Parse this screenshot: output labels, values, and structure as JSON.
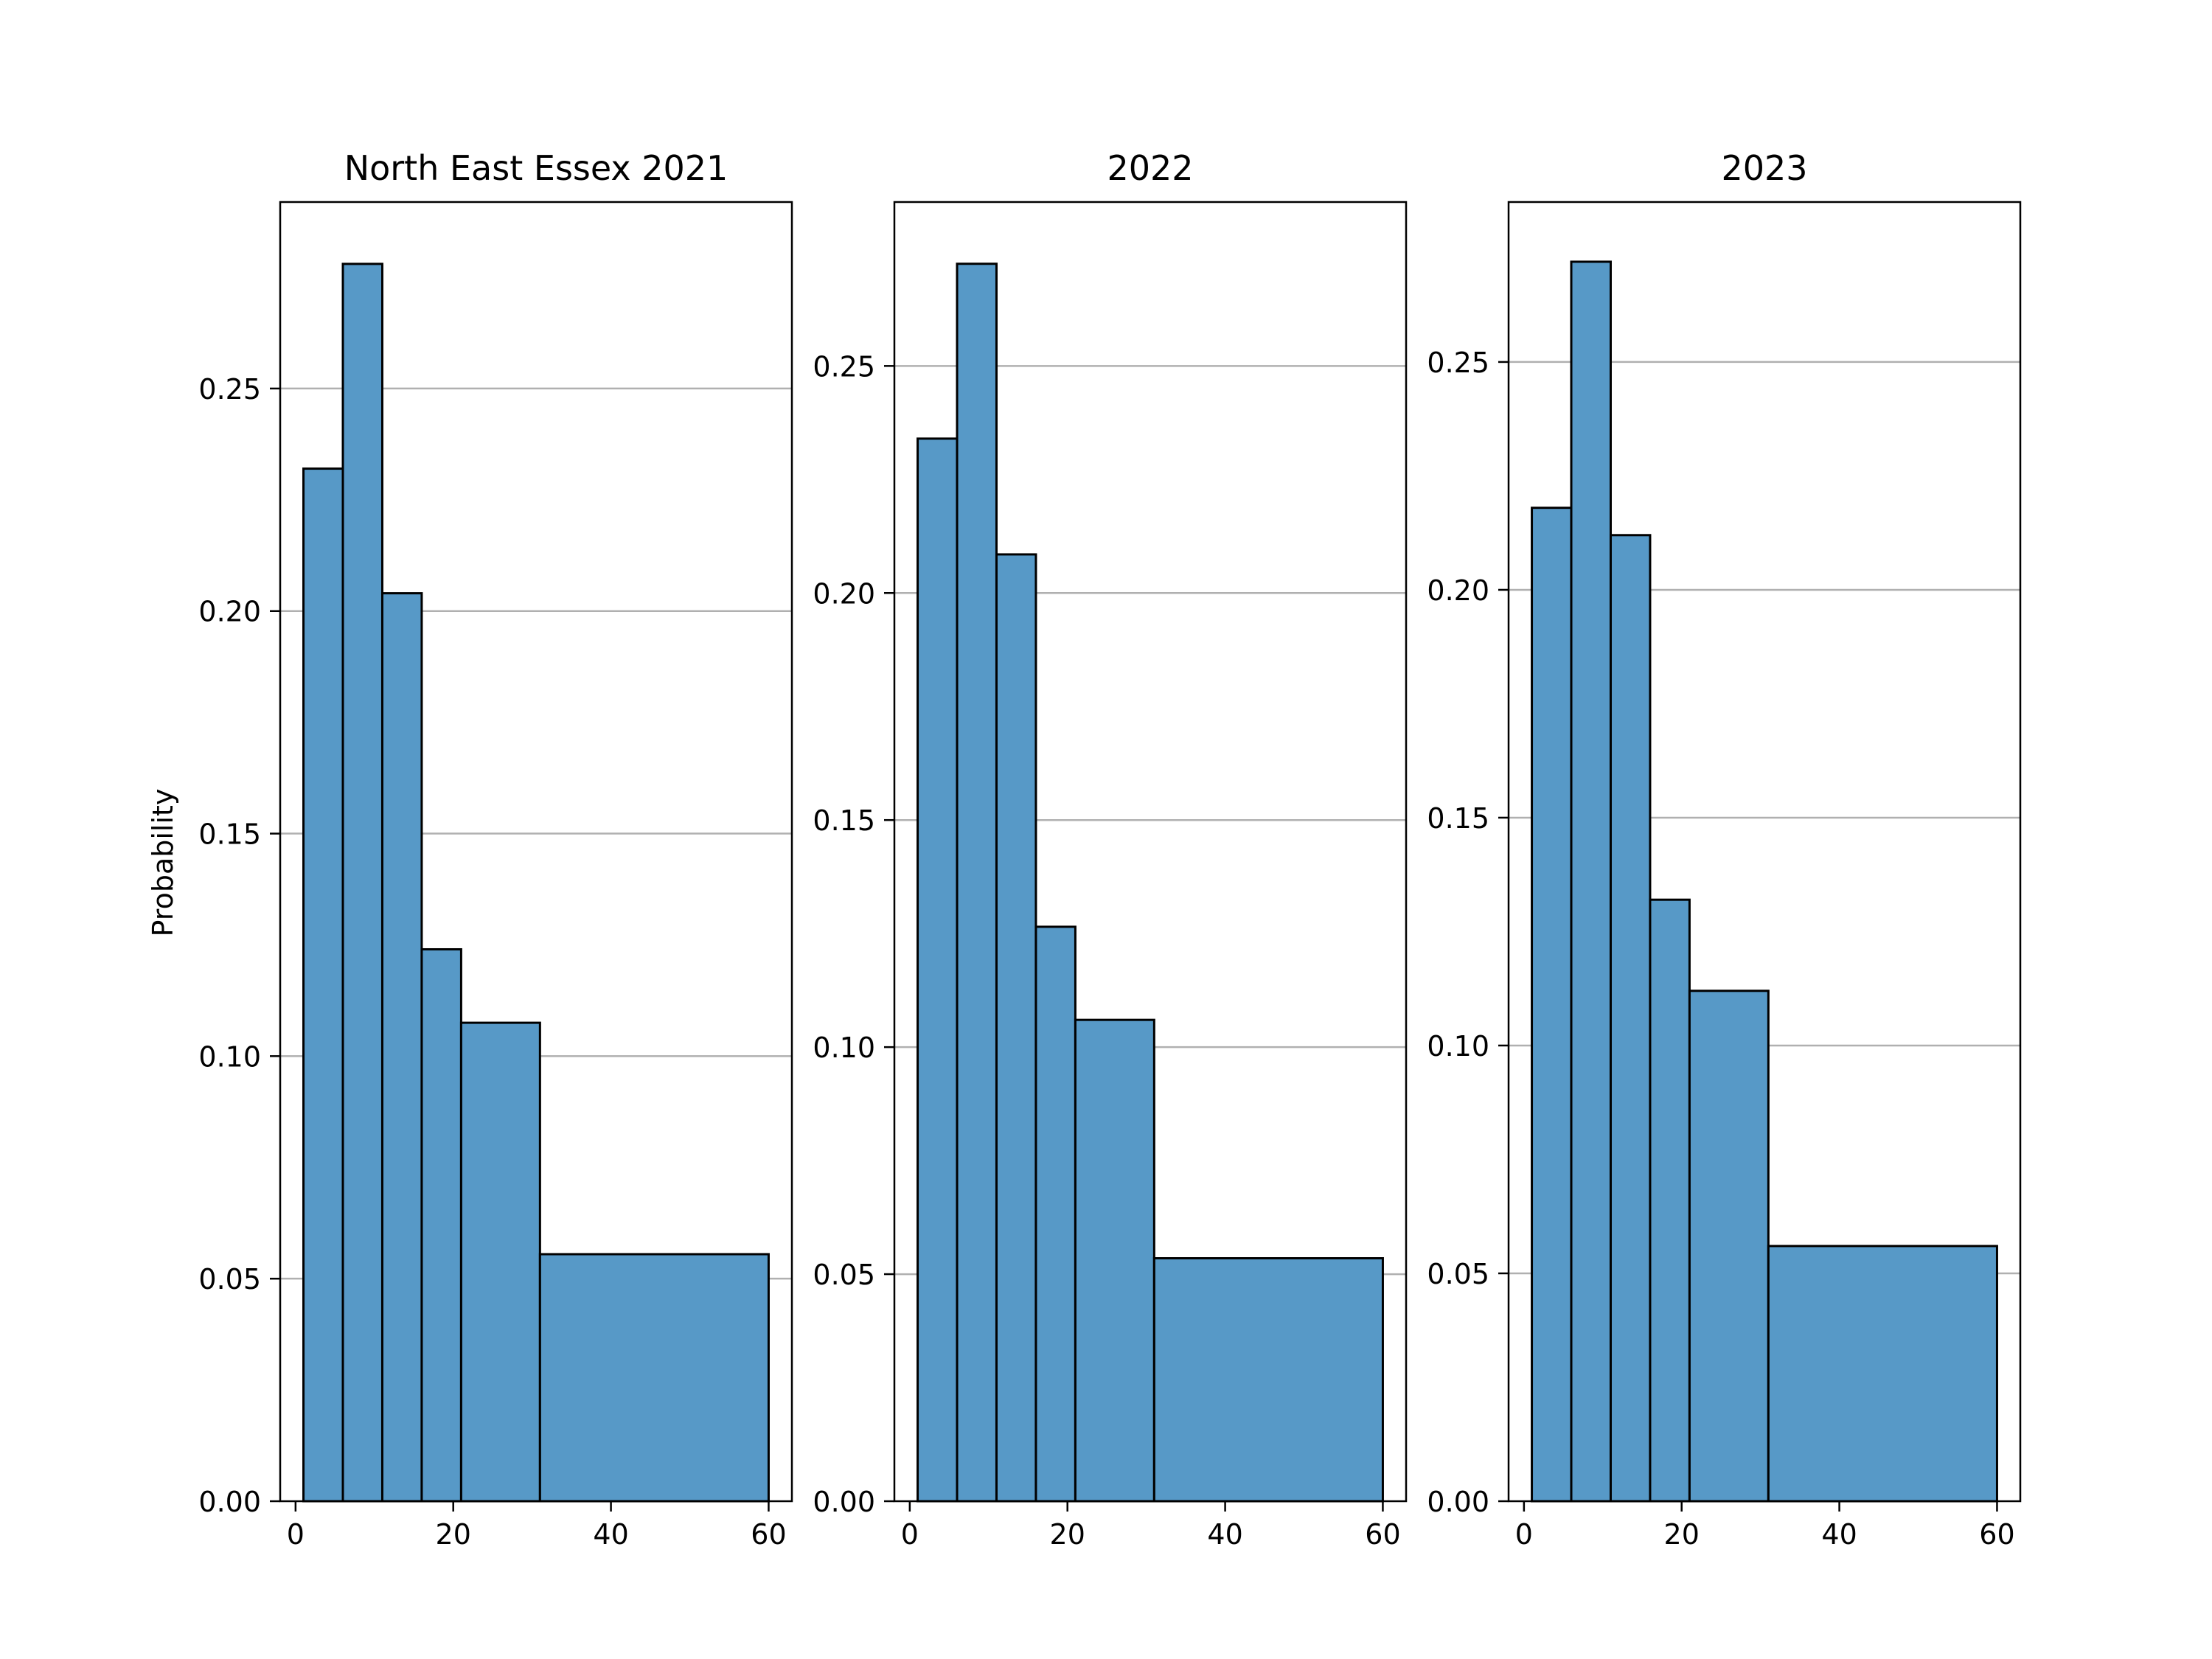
{
  "ylabel": "Probability",
  "style": {
    "bar_color": "#5799c7",
    "edge_color": "#000000",
    "grid_color": "#b0b0b0"
  },
  "chart_data": [
    {
      "type": "bar",
      "title": "North East Essex 2021",
      "bin_edges": [
        1,
        6,
        11,
        16,
        21,
        31,
        60
      ],
      "values": [
        0.232,
        0.278,
        0.204,
        0.124,
        0.1075,
        0.0555
      ],
      "xlim": [
        -1.95,
        62.95
      ],
      "ylim": [
        0,
        0.2919
      ],
      "xticks": [
        0,
        20,
        40,
        60
      ],
      "xtick_labels": [
        "0",
        "20",
        "40",
        "60"
      ],
      "yticks": [
        0,
        0.05,
        0.1,
        0.15,
        0.2,
        0.25
      ],
      "ytick_labels": [
        "0.00",
        "0.05",
        "0.10",
        "0.15",
        "0.20",
        "0.25"
      ],
      "grid": "y"
    },
    {
      "type": "bar",
      "title": "2022",
      "bin_edges": [
        1,
        6,
        11,
        16,
        21,
        31,
        60
      ],
      "values": [
        0.234,
        0.2725,
        0.2085,
        0.1265,
        0.106,
        0.0535
      ],
      "xlim": [
        -1.95,
        62.95
      ],
      "ylim": [
        0,
        0.2861
      ],
      "xticks": [
        0,
        20,
        40,
        60
      ],
      "xtick_labels": [
        "0",
        "20",
        "40",
        "60"
      ],
      "yticks": [
        0,
        0.05,
        0.1,
        0.15,
        0.2,
        0.25
      ],
      "ytick_labels": [
        "0.00",
        "0.05",
        "0.10",
        "0.15",
        "0.20",
        "0.25"
      ],
      "grid": "y"
    },
    {
      "type": "bar",
      "title": "2023",
      "bin_edges": [
        1,
        6,
        11,
        16,
        21,
        31,
        60
      ],
      "values": [
        0.218,
        0.272,
        0.212,
        0.132,
        0.112,
        0.056
      ],
      "xlim": [
        -1.95,
        62.95
      ],
      "ylim": [
        0,
        0.2851
      ],
      "xticks": [
        0,
        20,
        40,
        60
      ],
      "xtick_labels": [
        "0",
        "20",
        "40",
        "60"
      ],
      "yticks": [
        0,
        0.05,
        0.1,
        0.15,
        0.2,
        0.25
      ],
      "ytick_labels": [
        "0.00",
        "0.05",
        "0.10",
        "0.15",
        "0.20",
        "0.25"
      ],
      "grid": "y"
    }
  ]
}
